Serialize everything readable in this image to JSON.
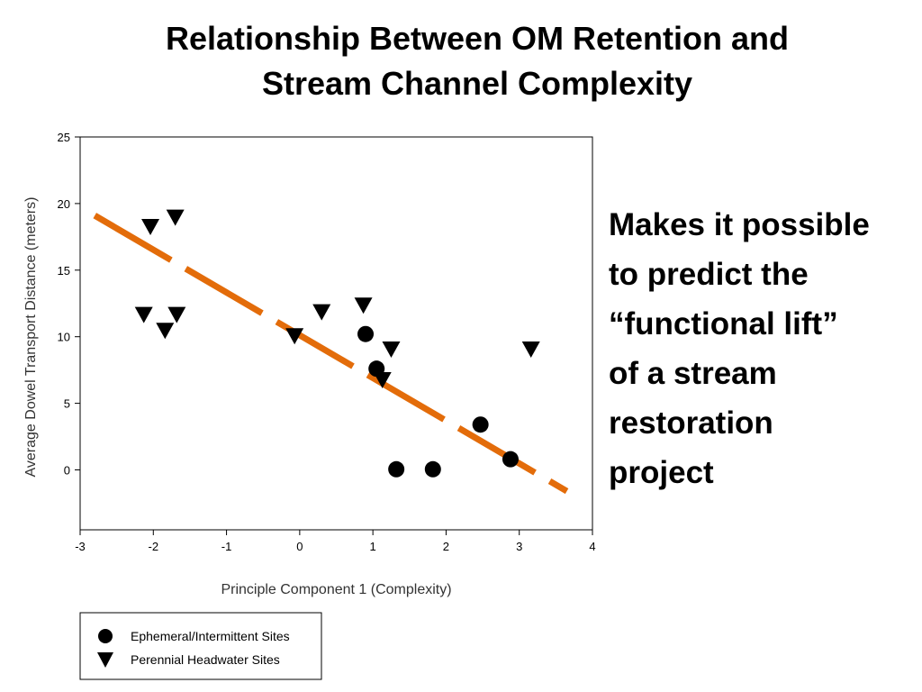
{
  "slide": {
    "title_line1": "Relationship Between OM Retention and",
    "title_line2": "Stream Channel Complexity",
    "side_text": "Makes it possible\nto predict the\n“functional lift”\nof a stream\nrestoration\nproject"
  },
  "colors": {
    "trend_line": "#E36C0A",
    "markers": "#000000"
  },
  "chart_data": {
    "type": "scatter",
    "xlabel": "Principle Component 1 (Complexity)",
    "ylabel": "Average Dowel Transport Distance (meters)",
    "xlim": [
      -3,
      4
    ],
    "ylim": [
      -4.5,
      25
    ],
    "x_ticks": [
      -3,
      -2,
      -1,
      0,
      1,
      2,
      3,
      4
    ],
    "y_ticks": [
      0,
      5,
      10,
      15,
      20,
      25
    ],
    "grid": false,
    "legend_placement": "bottom-left, below chart",
    "series": [
      {
        "name": "Ephemeral/Intermittent Sites",
        "marker": "circle",
        "points": [
          {
            "x": 0.9,
            "y": 10.2
          },
          {
            "x": 1.05,
            "y": 7.6
          },
          {
            "x": 1.32,
            "y": 0.05
          },
          {
            "x": 1.82,
            "y": 0.05
          },
          {
            "x": 2.47,
            "y": 3.4
          },
          {
            "x": 2.88,
            "y": 0.8
          }
        ]
      },
      {
        "name": "Perennial Headwater Sites",
        "marker": "triangle-down",
        "points": [
          {
            "x": -2.04,
            "y": 18.3
          },
          {
            "x": -1.7,
            "y": 19.0
          },
          {
            "x": -2.13,
            "y": 11.7
          },
          {
            "x": -1.84,
            "y": 10.5
          },
          {
            "x": -1.68,
            "y": 11.7
          },
          {
            "x": -0.07,
            "y": 10.1
          },
          {
            "x": 0.3,
            "y": 11.9
          },
          {
            "x": 0.87,
            "y": 12.4
          },
          {
            "x": 1.25,
            "y": 9.1
          },
          {
            "x": 1.13,
            "y": 6.8
          },
          {
            "x": 3.16,
            "y": 9.1
          }
        ]
      }
    ],
    "trend_line": {
      "style": "dashed",
      "from": {
        "x": -2.8,
        "y": 19.1
      },
      "to": {
        "x": 3.65,
        "y": -1.6
      }
    }
  }
}
